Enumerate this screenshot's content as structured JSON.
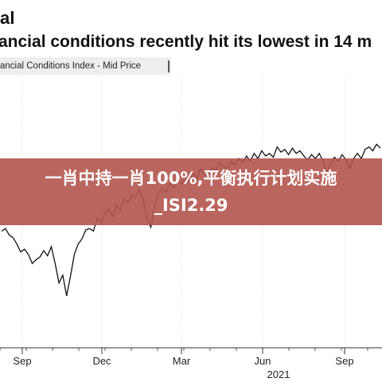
{
  "header": {
    "title_fragment": "al",
    "subtitle_fragment": "ancial conditions recently hit its lowest in 14 m"
  },
  "overlay": {
    "text": "一肖中持一肖100%,平衡执行计划实施_ISI2.29"
  },
  "colors": {
    "line": "#111111",
    "gridline": "#cfcfcf",
    "overlay_bg": "#b2554c",
    "legend_bg": "#eeeeee"
  },
  "chart_data": {
    "type": "line",
    "title": "ancial conditions recently hit its lowest in 14 m",
    "series": [
      {
        "name": "ancial Conditions Index - Mid Price",
        "values": [
          0.3,
          0.32,
          0.27,
          0.25,
          0.2,
          0.14,
          0.16,
          0.12,
          0.05,
          0.08,
          0.1,
          0.15,
          0.11,
          0.18,
          0.05,
          -0.1,
          -0.04,
          -0.2,
          -0.05,
          0.12,
          0.2,
          0.24,
          0.31,
          0.32,
          0.3,
          0.4,
          0.37,
          0.44,
          0.47,
          0.41,
          0.5,
          0.46,
          0.55,
          0.52,
          0.58,
          0.56,
          0.62,
          0.54,
          0.4,
          0.33,
          0.5,
          0.6,
          0.63,
          0.6,
          0.67,
          0.64,
          0.7,
          0.66,
          0.72,
          0.68,
          0.75,
          0.7,
          0.78,
          0.74,
          0.72,
          0.79,
          0.77,
          0.83,
          0.8,
          0.78,
          0.84,
          0.81,
          0.86,
          0.83,
          0.88,
          0.84,
          0.9,
          0.86,
          0.92,
          0.88,
          0.9,
          0.87,
          0.95,
          0.91,
          0.93,
          0.89,
          0.94,
          0.9,
          0.92,
          0.88,
          0.85,
          0.89,
          0.86,
          0.9,
          0.84,
          0.75,
          0.82,
          0.87,
          0.84,
          0.89,
          0.85,
          0.78,
          0.86,
          0.9,
          0.86,
          0.93,
          0.95,
          0.92,
          0.97,
          0.94
        ]
      }
    ],
    "x_tick_labels": [
      "Sep",
      "Dec",
      "Mar",
      "Jun",
      "Sep"
    ],
    "x_secondary_label": "2021",
    "ylim": [
      -0.6,
      1.5
    ],
    "grid": true,
    "legend_position": "top-left"
  }
}
